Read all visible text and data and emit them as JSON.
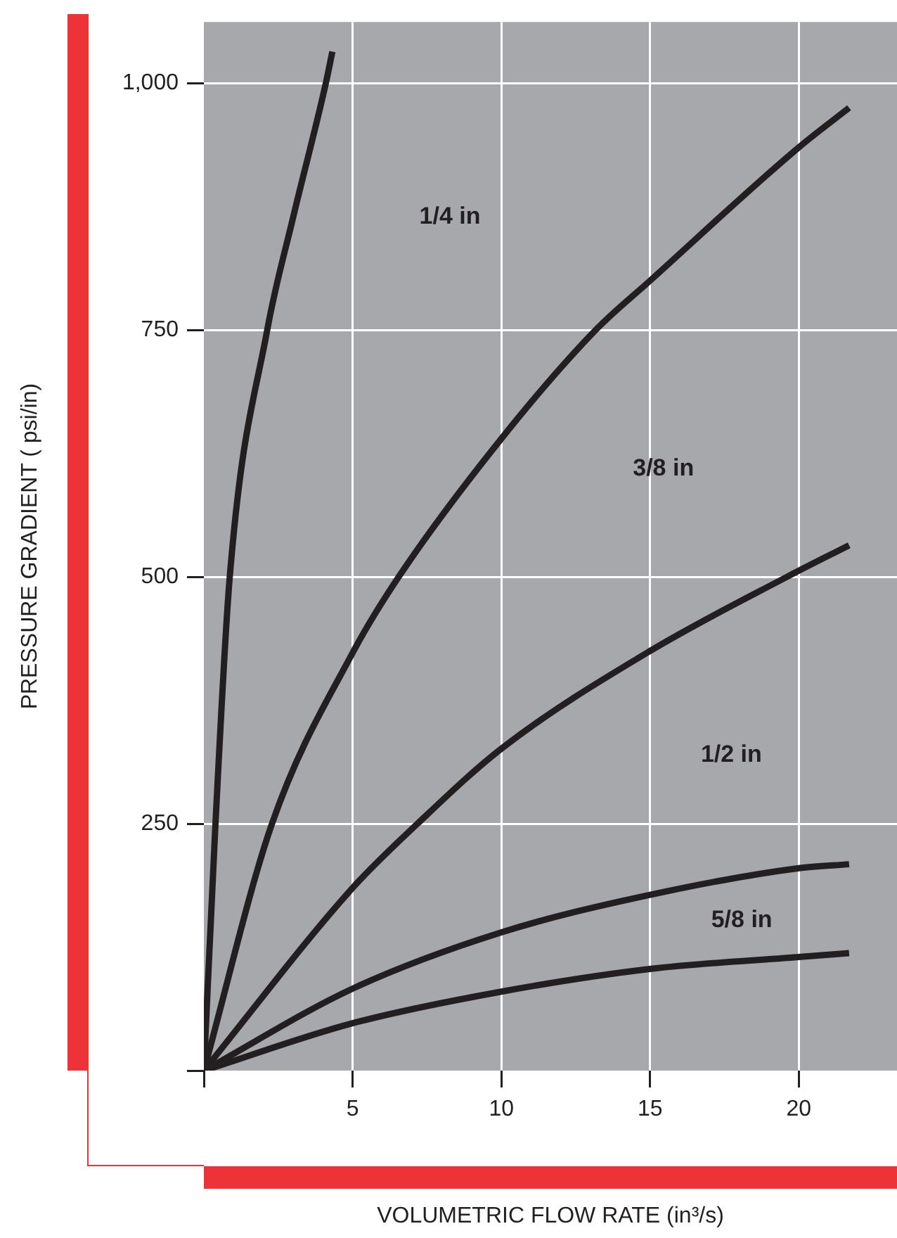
{
  "chart_data": {
    "type": "line",
    "xlabel": "VOLUMETRIC FLOW RATE (in³/s)",
    "ylabel": "PRESSURE GRADIENT ( psi/in)",
    "xlim": [
      0,
      23.3
    ],
    "ylim": [
      0,
      1062
    ],
    "xticks": [
      {
        "value": 0,
        "label": null
      },
      5,
      10,
      15,
      20
    ],
    "yticks": [
      {
        "value": 0,
        "label": null
      },
      250,
      500,
      750,
      {
        "value": 1000,
        "label": "1,000"
      }
    ],
    "grid": true,
    "legend": false,
    "marker": "none",
    "line_style": "solid",
    "series": [
      {
        "color": "#231f20",
        "x": [
          0,
          0.39,
          0.87,
          2.13,
          3,
          4.1,
          4.32
        ],
        "values": [
          0,
          250,
          500,
          750,
          864,
          1000,
          1032
        ]
      },
      {
        "color": "#231f20",
        "x": [
          0,
          2.29,
          5,
          6.55,
          10,
          13.17,
          15,
          20,
          21.69
        ],
        "values": [
          0,
          250,
          423,
          500,
          640,
          750,
          800,
          935,
          975
        ]
      },
      {
        "color": "#231f20",
        "x": [
          0,
          5,
          7.18,
          10,
          15,
          19.6,
          21.69
        ],
        "values": [
          0,
          185,
          250,
          326,
          425,
          500,
          532
        ]
      },
      {
        "color": "#231f20",
        "x": [
          0,
          5,
          10,
          15,
          20,
          21.69
        ],
        "values": [
          0,
          83,
          140,
          178,
          205,
          209
        ]
      },
      {
        "color": "#231f20",
        "x": [
          0,
          5,
          10,
          15,
          20,
          21.69
        ],
        "values": [
          0,
          48,
          80,
          103,
          115,
          119
        ]
      }
    ],
    "annotations": [
      "1/4 in",
      "3/8 in",
      "1/2 in",
      "5/8 in"
    ]
  }
}
